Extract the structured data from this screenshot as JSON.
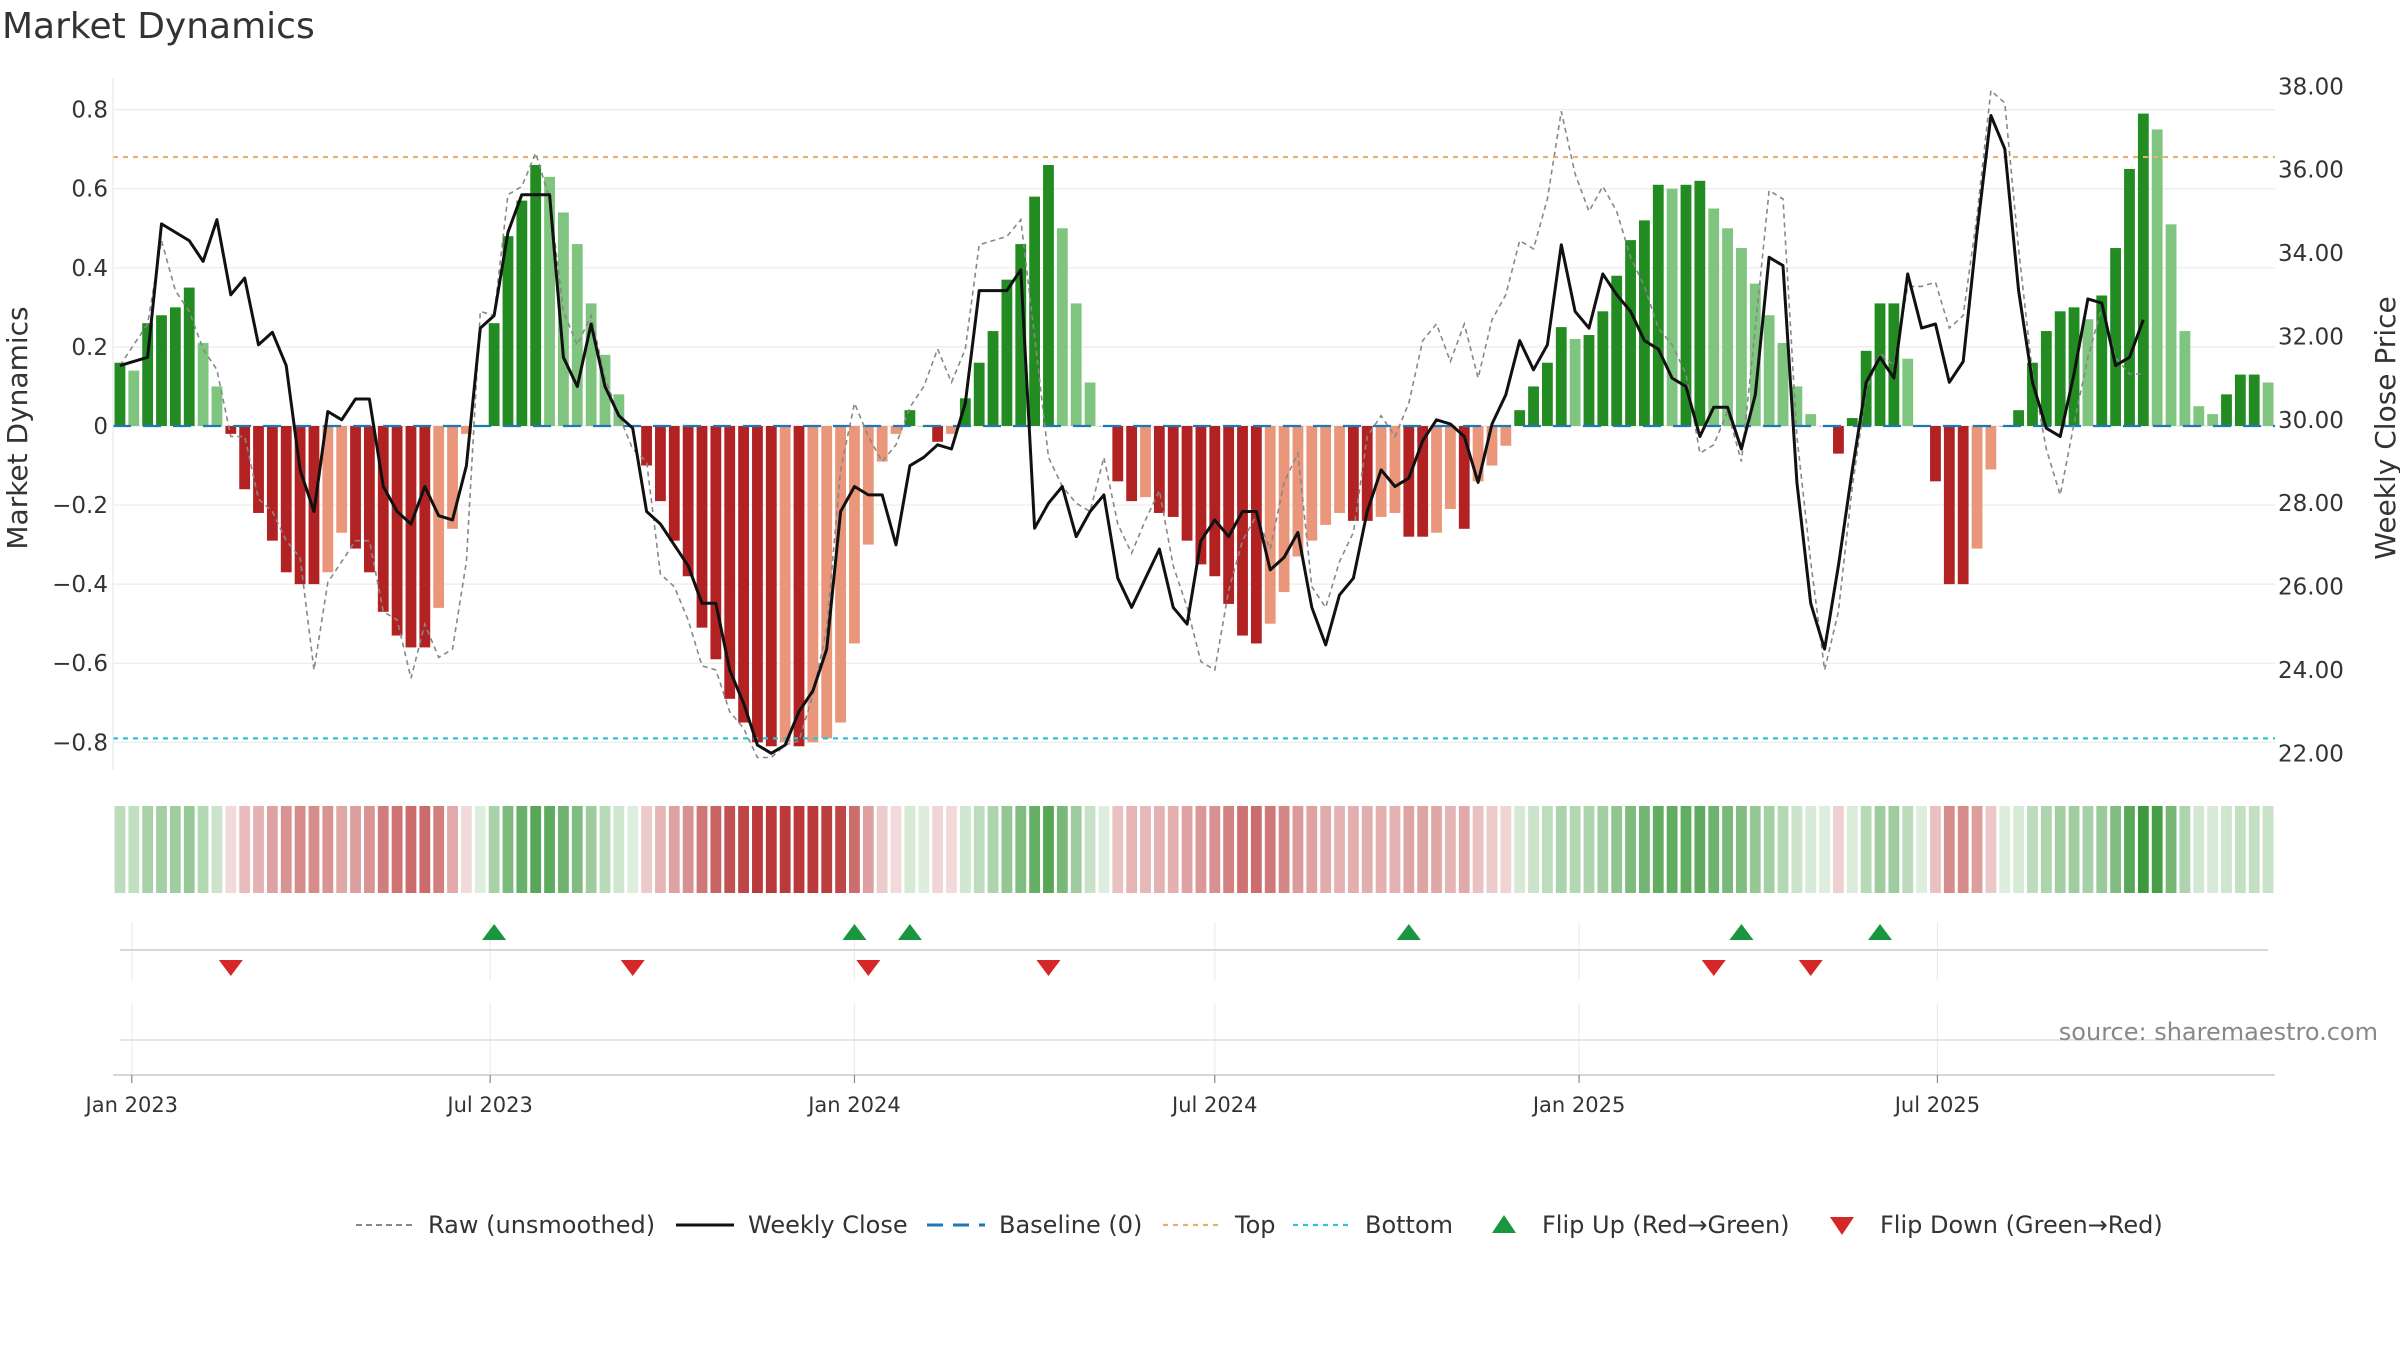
{
  "chart_data": {
    "type": "bar",
    "title": "Market Dynamics",
    "ylabel": "Market Dynamics",
    "y2label": "Weekly Close Price",
    "source": "source: sharemaestro.com",
    "ylim": [
      -0.87,
      0.88
    ],
    "y2lim": [
      21.6,
      38.2
    ],
    "yticks": [
      {
        "value": 0.8,
        "label": "0.8"
      },
      {
        "value": 0.6,
        "label": "0.6"
      },
      {
        "value": 0.4,
        "label": "0.4"
      },
      {
        "value": 0.2,
        "label": "0.2"
      },
      {
        "value": 0,
        "label": "0"
      },
      {
        "value": -0.2,
        "label": "−0.2"
      },
      {
        "value": -0.4,
        "label": "−0.4"
      },
      {
        "value": -0.6,
        "label": "−0.6"
      },
      {
        "value": -0.8,
        "label": "−0.8"
      }
    ],
    "y2ticks": [
      {
        "value": 38,
        "label": "38.00"
      },
      {
        "value": 36,
        "label": "36.00"
      },
      {
        "value": 34,
        "label": "34.00"
      },
      {
        "value": 32,
        "label": "32.00"
      },
      {
        "value": 30,
        "label": "30.00"
      },
      {
        "value": 28,
        "label": "28.00"
      },
      {
        "value": 26,
        "label": "26.00"
      },
      {
        "value": 24,
        "label": "24.00"
      },
      {
        "value": 22,
        "label": "22.00"
      }
    ],
    "xticks": [
      {
        "date": "2023-01-01",
        "label": "Jan 2023"
      },
      {
        "date": "2023-07-01",
        "label": "Jul 2023"
      },
      {
        "date": "2024-01-01",
        "label": "Jan 2024"
      },
      {
        "date": "2024-07-01",
        "label": "Jul 2024"
      },
      {
        "date": "2025-01-01",
        "label": "Jan 2025"
      },
      {
        "date": "2025-07-01",
        "label": "Jul 2025"
      }
    ],
    "start_date": "2022-12-26",
    "top_level": 0.68,
    "bottom_level": -0.79,
    "baseline": 0,
    "momentum": [
      0.16,
      0.14,
      0.26,
      0.28,
      0.3,
      0.35,
      0.21,
      0.1,
      -0.02,
      -0.16,
      -0.22,
      -0.29,
      -0.37,
      -0.4,
      -0.4,
      -0.37,
      -0.27,
      -0.31,
      -0.37,
      -0.47,
      -0.53,
      -0.56,
      -0.56,
      -0.46,
      -0.26,
      -0.02,
      0.0,
      0.26,
      0.48,
      0.57,
      0.66,
      0.63,
      0.54,
      0.46,
      0.31,
      0.18,
      0.08,
      0.0,
      -0.1,
      -0.19,
      -0.29,
      -0.38,
      -0.51,
      -0.59,
      -0.69,
      -0.75,
      -0.8,
      -0.81,
      -0.8,
      -0.81,
      -0.8,
      -0.79,
      -0.75,
      -0.55,
      -0.3,
      -0.09,
      -0.02,
      0.04,
      0.0,
      -0.04,
      -0.02,
      0.07,
      0.16,
      0.24,
      0.37,
      0.46,
      0.58,
      0.66,
      0.5,
      0.31,
      0.11,
      0.0,
      -0.14,
      -0.19,
      -0.18,
      -0.22,
      -0.23,
      -0.29,
      -0.35,
      -0.38,
      -0.45,
      -0.53,
      -0.55,
      -0.5,
      -0.42,
      -0.33,
      -0.29,
      -0.25,
      -0.22,
      -0.24,
      -0.24,
      -0.23,
      -0.22,
      -0.28,
      -0.28,
      -0.27,
      -0.21,
      -0.26,
      -0.14,
      -0.1,
      -0.05,
      0.04,
      0.1,
      0.16,
      0.25,
      0.22,
      0.23,
      0.29,
      0.38,
      0.47,
      0.52,
      0.61,
      0.6,
      0.61,
      0.62,
      0.55,
      0.5,
      0.45,
      0.36,
      0.28,
      0.21,
      0.1,
      0.03,
      0.0,
      -0.07,
      0.02,
      0.19,
      0.31,
      0.31,
      0.17,
      0.0,
      -0.14,
      -0.4,
      -0.4,
      -0.31,
      -0.11,
      0.0,
      0.04,
      0.16,
      0.24,
      0.29,
      0.3,
      0.27,
      0.33,
      0.45,
      0.65,
      0.79,
      0.75,
      0.51,
      0.24,
      0.05,
      0.03,
      0.08,
      0.13,
      0.13,
      0.11
    ],
    "colors": {
      "strong_up": "#228b22",
      "weak_up": "#7fc47f",
      "strong_down": "#b22222",
      "weak_down": "#e9967a",
      "weekly_close": "#111111",
      "raw": "#888888",
      "baseline": "#1f77b4",
      "top": "#e8b068",
      "bottom": "#2ec4d6",
      "flip_up": "#1a9641",
      "flip_down": "#d62728"
    },
    "weekly_close_points": [
      [
        0,
        31.3
      ],
      [
        2,
        31.5
      ],
      [
        3,
        34.7
      ],
      [
        5,
        34.3
      ],
      [
        6,
        33.8
      ],
      [
        7,
        34.8
      ],
      [
        8,
        33.0
      ],
      [
        9,
        33.4
      ],
      [
        10,
        31.8
      ],
      [
        11,
        32.1
      ],
      [
        12,
        31.3
      ],
      [
        13,
        28.8
      ],
      [
        14,
        27.8
      ],
      [
        15,
        30.2
      ],
      [
        16,
        30.0
      ],
      [
        17,
        30.5
      ],
      [
        18,
        30.5
      ],
      [
        19,
        28.4
      ],
      [
        20,
        27.8
      ],
      [
        21,
        27.5
      ],
      [
        22,
        28.4
      ],
      [
        23,
        27.7
      ],
      [
        24,
        27.6
      ],
      [
        25,
        28.9
      ],
      [
        26,
        32.2
      ],
      [
        27,
        32.5
      ],
      [
        28,
        34.5
      ],
      [
        29,
        35.4
      ],
      [
        30,
        35.4
      ],
      [
        31,
        35.4
      ],
      [
        32,
        31.5
      ],
      [
        33,
        30.8
      ],
      [
        34,
        32.3
      ],
      [
        35,
        30.8
      ],
      [
        36,
        30.1
      ],
      [
        37,
        29.8
      ],
      [
        38,
        27.8
      ],
      [
        39,
        27.5
      ],
      [
        40,
        27.0
      ],
      [
        41,
        26.5
      ],
      [
        42,
        25.6
      ],
      [
        43,
        25.6
      ],
      [
        44,
        24.0
      ],
      [
        45,
        23.2
      ],
      [
        46,
        22.2
      ],
      [
        47,
        22.0
      ],
      [
        48,
        22.2
      ],
      [
        49,
        23.0
      ],
      [
        50,
        23.5
      ],
      [
        51,
        24.5
      ],
      [
        52,
        27.8
      ],
      [
        53,
        28.4
      ],
      [
        54,
        28.2
      ],
      [
        55,
        28.2
      ],
      [
        56,
        27.0
      ],
      [
        57,
        28.9
      ],
      [
        58,
        29.1
      ],
      [
        59,
        29.4
      ],
      [
        60,
        29.3
      ],
      [
        61,
        30.4
      ],
      [
        62,
        33.1
      ],
      [
        63,
        33.1
      ],
      [
        64,
        33.1
      ],
      [
        65,
        33.6
      ],
      [
        66,
        27.4
      ],
      [
        67,
        28.0
      ],
      [
        68,
        28.4
      ],
      [
        69,
        27.2
      ],
      [
        70,
        27.8
      ],
      [
        71,
        28.2
      ],
      [
        72,
        26.2
      ],
      [
        73,
        25.5
      ],
      [
        74,
        26.2
      ],
      [
        75,
        26.9
      ],
      [
        76,
        25.5
      ],
      [
        77,
        25.1
      ],
      [
        78,
        27.1
      ],
      [
        79,
        27.6
      ],
      [
        80,
        27.2
      ],
      [
        81,
        27.8
      ],
      [
        82,
        27.8
      ],
      [
        83,
        26.4
      ],
      [
        84,
        26.7
      ],
      [
        85,
        27.3
      ],
      [
        86,
        25.5
      ],
      [
        87,
        24.6
      ],
      [
        88,
        25.8
      ],
      [
        89,
        26.2
      ],
      [
        90,
        27.8
      ],
      [
        91,
        28.8
      ],
      [
        92,
        28.4
      ],
      [
        93,
        28.6
      ],
      [
        94,
        29.5
      ],
      [
        95,
        30.0
      ],
      [
        96,
        29.9
      ],
      [
        97,
        29.6
      ],
      [
        98,
        28.5
      ],
      [
        99,
        29.9
      ],
      [
        100,
        30.6
      ],
      [
        101,
        31.9
      ],
      [
        102,
        31.2
      ],
      [
        103,
        31.8
      ],
      [
        104,
        34.2
      ],
      [
        105,
        32.6
      ],
      [
        106,
        32.2
      ],
      [
        107,
        33.5
      ],
      [
        108,
        33.0
      ],
      [
        109,
        32.6
      ],
      [
        110,
        31.9
      ],
      [
        111,
        31.7
      ],
      [
        112,
        31.0
      ],
      [
        113,
        30.8
      ],
      [
        114,
        29.6
      ],
      [
        115,
        30.3
      ],
      [
        116,
        30.3
      ],
      [
        117,
        29.3
      ],
      [
        118,
        30.6
      ],
      [
        119,
        33.9
      ],
      [
        120,
        33.7
      ],
      [
        121,
        28.5
      ],
      [
        122,
        25.6
      ],
      [
        123,
        24.5
      ],
      [
        124,
        26.5
      ],
      [
        125,
        28.8
      ],
      [
        126,
        30.9
      ],
      [
        127,
        31.5
      ],
      [
        128,
        31.0
      ],
      [
        129,
        33.5
      ],
      [
        130,
        32.2
      ],
      [
        131,
        32.3
      ],
      [
        132,
        30.9
      ],
      [
        133,
        31.4
      ],
      [
        134,
        34.5
      ],
      [
        135,
        37.3
      ],
      [
        136,
        36.5
      ],
      [
        137,
        33.1
      ],
      [
        138,
        30.9
      ],
      [
        139,
        29.8
      ],
      [
        140,
        29.6
      ],
      [
        141,
        31.1
      ],
      [
        142,
        32.9
      ],
      [
        143,
        32.8
      ],
      [
        144,
        31.3
      ],
      [
        145,
        31.5
      ],
      [
        146,
        32.4
      ]
    ],
    "raw_points": [
      [
        0,
        31.3
      ],
      [
        2,
        32.3
      ],
      [
        3,
        34.3
      ],
      [
        4,
        33.1
      ],
      [
        5,
        32.6
      ],
      [
        6,
        31.7
      ],
      [
        7,
        31.2
      ],
      [
        8,
        29.6
      ],
      [
        9,
        29.6
      ],
      [
        10,
        28.1
      ],
      [
        11,
        27.8
      ],
      [
        12,
        27.1
      ],
      [
        13,
        26.7
      ],
      [
        14,
        24.0
      ],
      [
        15,
        26.1
      ],
      [
        16,
        26.6
      ],
      [
        17,
        27.1
      ],
      [
        18,
        27.1
      ],
      [
        19,
        25.4
      ],
      [
        20,
        25.2
      ],
      [
        21,
        23.8
      ],
      [
        22,
        25.1
      ],
      [
        23,
        24.3
      ],
      [
        24,
        24.5
      ],
      [
        25,
        26.6
      ],
      [
        26,
        32.6
      ],
      [
        27,
        32.5
      ],
      [
        28,
        35.4
      ],
      [
        29,
        35.6
      ],
      [
        30,
        36.4
      ],
      [
        31,
        35.3
      ],
      [
        32,
        32.6
      ],
      [
        33,
        31.8
      ],
      [
        34,
        32.5
      ],
      [
        35,
        31.0
      ],
      [
        36,
        30.1
      ],
      [
        37,
        29.3
      ],
      [
        38,
        29.0
      ],
      [
        39,
        26.3
      ],
      [
        40,
        26.0
      ],
      [
        41,
        25.2
      ],
      [
        42,
        24.1
      ],
      [
        43,
        24.0
      ],
      [
        44,
        23.0
      ],
      [
        45,
        22.6
      ],
      [
        46,
        21.9
      ],
      [
        47,
        21.9
      ],
      [
        48,
        22.2
      ],
      [
        49,
        22.3
      ],
      [
        50,
        23.4
      ],
      [
        51,
        25.0
      ],
      [
        52,
        28.8
      ],
      [
        53,
        30.4
      ],
      [
        54,
        29.6
      ],
      [
        55,
        29.0
      ],
      [
        56,
        29.4
      ],
      [
        57,
        30.3
      ],
      [
        58,
        30.8
      ],
      [
        59,
        31.7
      ],
      [
        60,
        30.9
      ],
      [
        61,
        31.7
      ],
      [
        62,
        34.2
      ],
      [
        63,
        34.3
      ],
      [
        64,
        34.4
      ],
      [
        65,
        34.8
      ],
      [
        66,
        32.0
      ],
      [
        67,
        29.1
      ],
      [
        68,
        28.4
      ],
      [
        69,
        28.0
      ],
      [
        70,
        27.8
      ],
      [
        71,
        29.1
      ],
      [
        72,
        27.5
      ],
      [
        73,
        26.8
      ],
      [
        74,
        27.6
      ],
      [
        75,
        28.3
      ],
      [
        76,
        26.5
      ],
      [
        77,
        25.5
      ],
      [
        78,
        24.2
      ],
      [
        79,
        24.0
      ],
      [
        80,
        25.9
      ],
      [
        81,
        27.1
      ],
      [
        82,
        27.7
      ],
      [
        83,
        26.9
      ],
      [
        84,
        28.5
      ],
      [
        85,
        29.2
      ],
      [
        86,
        26.0
      ],
      [
        87,
        25.5
      ],
      [
        88,
        26.6
      ],
      [
        89,
        27.3
      ],
      [
        90,
        29.6
      ],
      [
        91,
        30.1
      ],
      [
        92,
        29.6
      ],
      [
        93,
        30.4
      ],
      [
        94,
        31.9
      ],
      [
        95,
        32.3
      ],
      [
        96,
        31.4
      ],
      [
        97,
        32.3
      ],
      [
        98,
        31.0
      ],
      [
        99,
        32.4
      ],
      [
        100,
        33.0
      ],
      [
        101,
        34.3
      ],
      [
        102,
        34.1
      ],
      [
        103,
        35.3
      ],
      [
        104,
        37.4
      ],
      [
        105,
        35.9
      ],
      [
        106,
        35.0
      ],
      [
        107,
        35.6
      ],
      [
        108,
        35.0
      ],
      [
        109,
        33.9
      ],
      [
        110,
        33.2
      ],
      [
        111,
        32.2
      ],
      [
        112,
        31.8
      ],
      [
        113,
        31.1
      ],
      [
        114,
        29.2
      ],
      [
        115,
        29.4
      ],
      [
        116,
        30.2
      ],
      [
        117,
        29.0
      ],
      [
        118,
        32.2
      ],
      [
        119,
        35.5
      ],
      [
        120,
        35.3
      ],
      [
        121,
        29.6
      ],
      [
        122,
        26.6
      ],
      [
        123,
        24.0
      ],
      [
        124,
        25.4
      ],
      [
        125,
        28.4
      ],
      [
        126,
        30.7
      ],
      [
        127,
        31.6
      ],
      [
        128,
        31.3
      ],
      [
        129,
        33.2
      ],
      [
        130,
        33.2
      ],
      [
        131,
        33.3
      ],
      [
        132,
        32.2
      ],
      [
        133,
        32.5
      ],
      [
        134,
        34.9
      ],
      [
        135,
        37.9
      ],
      [
        136,
        37.6
      ],
      [
        137,
        34.1
      ],
      [
        138,
        31.1
      ],
      [
        139,
        29.3
      ],
      [
        140,
        28.2
      ],
      [
        141,
        29.9
      ],
      [
        142,
        31.5
      ],
      [
        143,
        32.7
      ],
      [
        144,
        31.5
      ],
      [
        145,
        31.1
      ],
      [
        146,
        31.1
      ]
    ],
    "flip_up_indices": [
      27,
      53,
      57,
      93,
      117,
      127
    ],
    "flip_down_indices": [
      8,
      37,
      54,
      67,
      115,
      122
    ],
    "legend": [
      {
        "label": "Raw (unsmoothed)",
        "kind": "raw"
      },
      {
        "label": "Weekly Close",
        "kind": "close"
      },
      {
        "label": "Baseline (0)",
        "kind": "baseline"
      },
      {
        "label": "Top",
        "kind": "top"
      },
      {
        "label": "Bottom",
        "kind": "bottom"
      },
      {
        "label": "Flip Up (Red→Green)",
        "kind": "flipup"
      },
      {
        "label": "Flip Down (Green→Red)",
        "kind": "flipdown"
      }
    ]
  }
}
